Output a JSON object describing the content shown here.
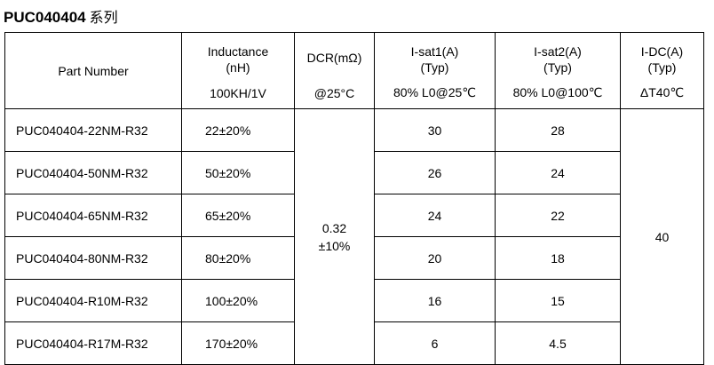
{
  "title": {
    "main": "PUC040404",
    "suffix": "系列"
  },
  "headers": {
    "part_number": "Part Number",
    "inductance": {
      "line1": "Inductance",
      "line2": "(nH)",
      "cond": "100KH/1V"
    },
    "dcr": {
      "line1": "DCR(mΩ)",
      "cond": "@25°C"
    },
    "isat1": {
      "line1": "I-sat1(A)",
      "line2": "(Typ)",
      "cond": "80% L0@25℃"
    },
    "isat2": {
      "line1": "I-sat2(A)",
      "line2": "(Typ)",
      "cond": "80% L0@100℃"
    },
    "idc": {
      "line1": "I-DC(A)",
      "line2": "(Typ)",
      "cond": "ΔT40℃"
    }
  },
  "rows": [
    {
      "part": "PUC040404-22NM-R32",
      "inductance": "22±20%",
      "isat1": "30",
      "isat2": "28"
    },
    {
      "part": "PUC040404-50NM-R32",
      "inductance": "50±20%",
      "isat1": "26",
      "isat2": "24"
    },
    {
      "part": "PUC040404-65NM-R32",
      "inductance": "65±20%",
      "isat1": "24",
      "isat2": "22"
    },
    {
      "part": "PUC040404-80NM-R32",
      "inductance": "80±20%",
      "isat1": "20",
      "isat2": "18"
    },
    {
      "part": "PUC040404-R10M-R32",
      "inductance": "100±20%",
      "isat1": "16",
      "isat2": "15"
    },
    {
      "part": "PUC040404-R17M-R32",
      "inductance": "170±20%",
      "isat1": "6",
      "isat2": "4.5"
    }
  ],
  "shared": {
    "dcr": {
      "line1": "0.32",
      "line2": "±10%"
    },
    "idc": "40"
  }
}
